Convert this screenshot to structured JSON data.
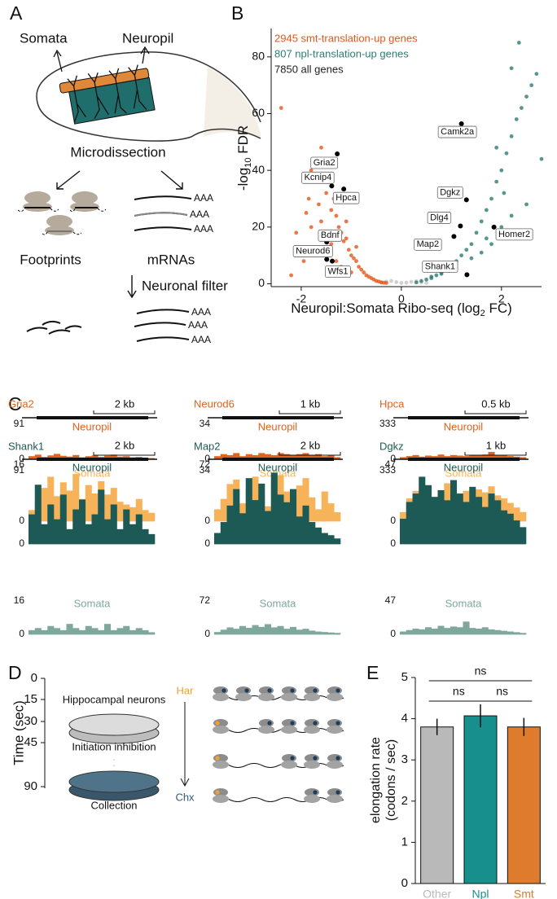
{
  "panel_labels": [
    "A",
    "B",
    "C",
    "D",
    "E"
  ],
  "schematic_a": {
    "somata": "Somata",
    "neuropil": "Neuropil",
    "step": "Microdissection",
    "footprints": "Footprints",
    "mrnas": "mRNAs",
    "filter": "Neuronal filter",
    "polya": [
      "AAA",
      "AAA",
      "AAA",
      "AAA",
      "AAA",
      "AAA"
    ]
  },
  "schematic_d": {
    "time_label": "Time (sec)",
    "time_ticks": [
      0,
      15,
      30,
      45,
      90
    ],
    "cell": "Hippocampal neurons",
    "inhibition": "Initiation inhibition",
    "collection": "Collection",
    "drug_start": "Har",
    "drug_end": "Chx"
  },
  "chart_data": [
    {
      "type": "scatter",
      "xlabel": [
        "Neuropil:Somata Ribo-seq (log",
        "2",
        " FC)"
      ],
      "ylabel": [
        "-log",
        "10",
        " FDR"
      ],
      "xlim": [
        -2.6,
        2.8
      ],
      "ylim": [
        -1,
        90
      ],
      "xticks": [
        -2,
        0,
        2
      ],
      "yticks": [
        0,
        20,
        40,
        60,
        80
      ],
      "series": [
        {
          "name": "2945 smt-translation-up genes",
          "color": "#e4571a",
          "x": [
            -2.4,
            -2.2,
            -2.1,
            -2.0,
            -1.95,
            -1.9,
            -1.85,
            -1.8,
            -1.75,
            -1.7,
            -1.65,
            -1.6,
            -1.55,
            -1.5,
            -1.45,
            -1.4,
            -1.35,
            -1.3,
            -1.25,
            -1.2,
            -1.15,
            -1.1,
            -1.05,
            -1.0,
            -0.95,
            -0.9,
            -0.85,
            -0.8,
            -0.75,
            -0.7,
            -0.65,
            -0.6,
            -0.55,
            -0.5,
            -0.45,
            -0.4,
            -0.35,
            -0.3,
            -1.8,
            -1.6,
            -1.4,
            -1.2,
            -1.0,
            -1.7,
            -1.5,
            -1.3,
            -1.1,
            -0.9
          ],
          "y": [
            62,
            3,
            18,
            12,
            8,
            25,
            30,
            20,
            42,
            36,
            28,
            22,
            38,
            32,
            44,
            26,
            30,
            24,
            20,
            18,
            15,
            16,
            12,
            10,
            9,
            8,
            6,
            5,
            4,
            3,
            2.5,
            2,
            1.5,
            1,
            0.8,
            0.5,
            0.4,
            0.3,
            40,
            48,
            14,
            6,
            4,
            10,
            12,
            8,
            22,
            13
          ]
        },
        {
          "name": "807 npl-translation-up genes",
          "color": "#2f7c74",
          "x": [
            0.3,
            0.4,
            0.5,
            0.6,
            0.7,
            0.8,
            0.9,
            1.0,
            1.1,
            1.2,
            1.3,
            1.4,
            1.5,
            1.6,
            1.7,
            1.8,
            1.9,
            2.0,
            2.1,
            2.2,
            2.3,
            2.4,
            2.5,
            2.6,
            2.7,
            2.8,
            1.9,
            2.2,
            2.35,
            1.0,
            1.4,
            1.7,
            2.0,
            2.2,
            0.6,
            0.8,
            1.6,
            1.8,
            2.05,
            2.5
          ],
          "y": [
            0.5,
            1,
            1.5,
            2,
            3,
            4,
            5,
            6,
            8,
            10,
            12,
            14,
            18,
            22,
            26,
            30,
            36,
            40,
            46,
            52,
            58,
            62,
            66,
            70,
            74,
            44,
            48,
            76,
            85,
            7,
            9,
            16,
            20,
            24,
            2.5,
            3.5,
            11,
            14,
            32,
            28
          ]
        },
        {
          "name": "7850 all genes",
          "color": "#222222",
          "x": [
            -0.4,
            -0.3,
            -0.2,
            -0.1,
            0,
            0.1,
            0.2,
            0.3,
            0.4,
            0.5
          ],
          "y": [
            0.5,
            0.8,
            1,
            0.6,
            0.3,
            0.4,
            0.7,
            0.9,
            0.5,
            0.3
          ]
        }
      ],
      "annotations": [
        {
          "text": "Gria2",
          "x": -1.28,
          "y": 45.8
        },
        {
          "text": "Kcnip4",
          "x": -1.39,
          "y": 34.5
        },
        {
          "text": "Hpca",
          "x": -1.15,
          "y": 33.4
        },
        {
          "text": "Bdnf",
          "x": -1.49,
          "y": 14.7
        },
        {
          "text": "Neurod6",
          "x": -1.49,
          "y": 8.6
        },
        {
          "text": "Wfs1",
          "x": -1.38,
          "y": 8
        },
        {
          "text": "Camk2a",
          "x": 1.2,
          "y": 56.4
        },
        {
          "text": "Dgkz",
          "x": 1.3,
          "y": 29.6
        },
        {
          "text": "Dlg4",
          "x": 1.18,
          "y": 20.4
        },
        {
          "text": "Homer2",
          "x": 1.85,
          "y": 20
        },
        {
          "text": "Map2",
          "x": 1.05,
          "y": 16.7
        },
        {
          "text": "Shank1",
          "x": 1.31,
          "y": 3.2
        }
      ]
    },
    {
      "type": "coverage",
      "title": "Gria2",
      "scale_label": "2 kb",
      "ylim": [
        0,
        91
      ],
      "yticks": [
        0,
        91
      ],
      "series": [
        {
          "name": "Neuropil",
          "color": "#e0621c",
          "values": [
            8,
            12,
            6,
            10,
            14,
            9,
            7,
            11,
            5,
            8,
            10,
            6,
            9,
            12,
            7,
            8,
            5,
            6,
            4,
            3
          ]
        },
        {
          "name": "Somata",
          "color": "#f7b35a",
          "values": [
            20,
            35,
            60,
            80,
            45,
            70,
            55,
            85,
            40,
            65,
            50,
            72,
            48,
            60,
            35,
            30,
            25,
            40,
            20,
            15
          ]
        }
      ]
    },
    {
      "type": "coverage",
      "title": "Neurod6",
      "scale_label": "1 kb",
      "ylim": [
        0,
        34
      ],
      "yticks": [
        0,
        34
      ],
      "series": [
        {
          "name": "Neuropil",
          "color": "#e0621c",
          "values": [
            3,
            5,
            4,
            6,
            3,
            5,
            4,
            6,
            5,
            4,
            6,
            5,
            4,
            5,
            6,
            4,
            5,
            3,
            4,
            2
          ]
        },
        {
          "name": "Somata",
          "color": "#f7b35a",
          "values": [
            8,
            15,
            25,
            28,
            12,
            22,
            30,
            18,
            10,
            26,
            31,
            20,
            14,
            24,
            29,
            16,
            8,
            20,
            12,
            6
          ]
        }
      ]
    },
    {
      "type": "coverage",
      "title": "Hpca",
      "scale_label": "0.5 kb",
      "ylim": [
        0,
        333
      ],
      "yticks": [
        0,
        333
      ],
      "series": [
        {
          "name": "Neuropil",
          "color": "#e0621c",
          "values": [
            20,
            30,
            40,
            25,
            35,
            30,
            45,
            30,
            40,
            35,
            30,
            40,
            35,
            45,
            70,
            40,
            35,
            30,
            25,
            20
          ]
        },
        {
          "name": "Somata",
          "color": "#f7b35a",
          "values": [
            60,
            150,
            200,
            180,
            220,
            160,
            200,
            250,
            230,
            180,
            200,
            160,
            210,
            190,
            230,
            170,
            150,
            120,
            90,
            60
          ]
        }
      ]
    },
    {
      "type": "coverage",
      "title": "Shank1",
      "scale_label": "2 kb",
      "ylim": [
        0,
        16
      ],
      "yticks": [
        0,
        16
      ],
      "series": [
        {
          "name": "Neuropil",
          "color": "#1d5a55",
          "values": [
            6,
            12,
            4,
            8,
            5,
            10,
            3,
            7,
            9,
            4,
            6,
            11,
            5,
            8,
            3,
            7,
            4,
            6,
            3,
            2
          ]
        },
        {
          "name": "Somata",
          "color": "#7ea79d",
          "values": [
            2,
            3,
            2,
            4,
            3,
            2,
            5,
            3,
            2,
            4,
            3,
            2,
            5,
            2,
            3,
            4,
            2,
            3,
            2,
            1
          ]
        }
      ]
    },
    {
      "type": "coverage",
      "title": "Map2",
      "scale_label": "2 kb",
      "ylim": [
        0,
        72
      ],
      "yticks": [
        0,
        72
      ],
      "series": [
        {
          "name": "Neuropil",
          "color": "#1d5a55",
          "values": [
            10,
            20,
            35,
            50,
            28,
            60,
            40,
            55,
            30,
            65,
            45,
            38,
            50,
            25,
            35,
            20,
            15,
            10,
            8,
            5
          ]
        },
        {
          "name": "Somata",
          "color": "#7ea79d",
          "values": [
            5,
            10,
            15,
            12,
            18,
            14,
            20,
            16,
            22,
            15,
            18,
            12,
            16,
            10,
            12,
            8,
            6,
            5,
            4,
            3
          ]
        }
      ]
    },
    {
      "type": "coverage",
      "title": "Dgkz",
      "scale_label": "1 kb",
      "ylim": [
        0,
        47
      ],
      "yticks": [
        0,
        47
      ],
      "series": [
        {
          "name": "Neuropil",
          "color": "#1d5a55",
          "values": [
            15,
            25,
            30,
            40,
            35,
            28,
            32,
            26,
            38,
            30,
            25,
            34,
            28,
            22,
            30,
            26,
            20,
            18,
            14,
            10
          ]
        },
        {
          "name": "Somata",
          "color": "#7ea79d",
          "values": [
            4,
            6,
            8,
            7,
            10,
            8,
            12,
            9,
            11,
            10,
            18,
            9,
            8,
            10,
            7,
            6,
            5,
            4,
            3,
            2
          ]
        }
      ]
    },
    {
      "type": "bar",
      "ylabel": [
        "elongation rate",
        "(codons / sec)"
      ],
      "categories": [
        "Other",
        "Npl",
        "Smt"
      ],
      "values": [
        3.8,
        4.07,
        3.8
      ],
      "errors": [
        0.2,
        0.28,
        0.22
      ],
      "colors": [
        "#b9b9b9",
        "#17908d",
        "#de7b2d"
      ],
      "ylim": [
        0,
        5
      ],
      "yticks": [
        0,
        1,
        2,
        3,
        4,
        5
      ],
      "annotations": [
        "ns",
        "ns",
        "ns"
      ]
    }
  ]
}
